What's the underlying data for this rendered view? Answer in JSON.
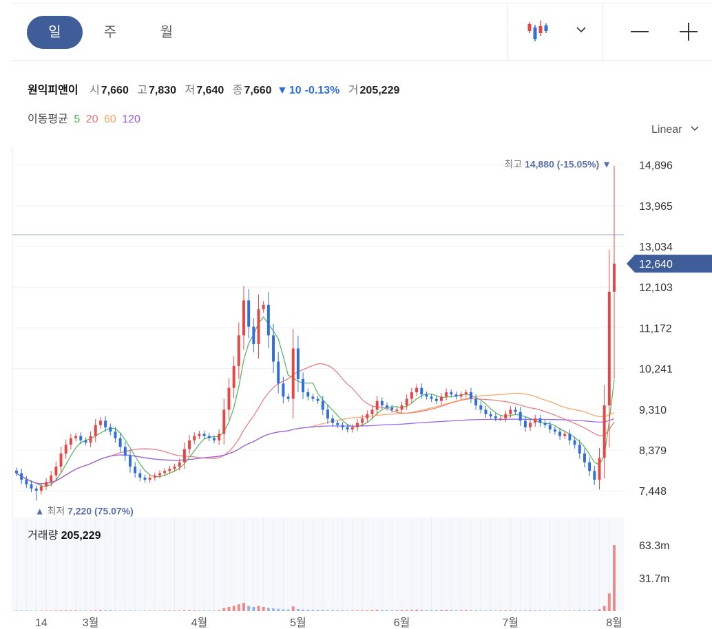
{
  "periods": [
    "일",
    "주",
    "월"
  ],
  "active_period": 0,
  "stock": {
    "name": "원익피앤이",
    "open_label": "시",
    "open": "7,660",
    "high_label": "고",
    "high": "7,830",
    "low_label": "저",
    "low": "7,640",
    "close_label": "종",
    "close": "7,660",
    "change_arrow": "▼",
    "change": "10",
    "change_pct": "-0.13%",
    "volume_label": "거",
    "volume": "205,229"
  },
  "ma": {
    "label": "이동평균",
    "periods": [
      "5",
      "20",
      "60",
      "120"
    ],
    "colors": [
      "#4caf50",
      "#e57373",
      "#f4a261",
      "#8e5be8"
    ]
  },
  "scale_mode": "Linear",
  "volume_panel": {
    "label": "거래량",
    "value": "205,229"
  },
  "icons": [
    "candlestick-icon",
    "chevron-down-icon",
    "minus-icon",
    "plus-icon"
  ],
  "colors": {
    "up": "#e84545",
    "down": "#2f6fdb",
    "accent": "#3f5d98"
  },
  "chart_data": {
    "type": "candlestick",
    "y_ticks": [
      "14,896",
      "13,965",
      "13,034",
      "12,103",
      "11,172",
      "10,241",
      "9,310",
      "8,379",
      "7,448"
    ],
    "y_tick_values": [
      14896,
      13965,
      13034,
      12103,
      11172,
      10241,
      9310,
      8379,
      7448
    ],
    "ylim": [
      6900,
      15300
    ],
    "x_tick_labels": [
      "14",
      "3월",
      "4월",
      "5월",
      "6월",
      "7월",
      "8월"
    ],
    "x_tick_index": [
      5,
      15,
      37,
      57,
      78,
      100,
      121
    ],
    "current_price_label": "12,640",
    "current_price": 12640,
    "reference_line": 13300,
    "max_marker": {
      "prefix": "최고",
      "value": "14,880",
      "pct": "(-15.05%)",
      "arrow": "▼",
      "price": 14880
    },
    "min_marker": {
      "prefix": "최저",
      "value": "7,220",
      "pct": "(75.07%)",
      "arrow": "▲",
      "price": 7220
    },
    "volume_ticks": [
      "63.3m",
      "31.7m"
    ],
    "volume_tick_values": [
      63.3,
      31.7
    ],
    "closes": [
      7850,
      7700,
      7600,
      7500,
      7450,
      7550,
      7650,
      7800,
      8000,
      8300,
      8500,
      8650,
      8700,
      8600,
      8550,
      8700,
      8950,
      9050,
      8900,
      8800,
      8650,
      8450,
      8250,
      8000,
      7850,
      7750,
      7700,
      7750,
      7800,
      7850,
      7900,
      7950,
      8000,
      8100,
      8400,
      8600,
      8700,
      8750,
      8700,
      8650,
      8600,
      8750,
      9300,
      9800,
      10300,
      11000,
      11800,
      11200,
      10800,
      11600,
      11700,
      11000,
      10400,
      9900,
      9600,
      9550,
      10700,
      10000,
      9700,
      9600,
      9550,
      9500,
      9300,
      9100,
      9000,
      8950,
      8900,
      8850,
      8900,
      9000,
      9100,
      9200,
      9300,
      9500,
      9400,
      9350,
      9300,
      9300,
      9400,
      9550,
      9700,
      9800,
      9650,
      9600,
      9550,
      9500,
      9600,
      9700,
      9650,
      9600,
      9650,
      9700,
      9550,
      9400,
      9300,
      9200,
      9150,
      9100,
      9100,
      9200,
      9300,
      9250,
      9050,
      8900,
      9000,
      9100,
      9000,
      8950,
      8850,
      8800,
      8700,
      8750,
      8600,
      8500,
      8300,
      8100,
      7900,
      7700,
      8200,
      9400,
      12000,
      12640
    ],
    "volumes": [
      0.5,
      0.5,
      0.4,
      0.4,
      0.4,
      0.4,
      0.4,
      0.5,
      0.6,
      0.7,
      0.7,
      0.7,
      0.7,
      0.6,
      0.6,
      0.6,
      0.7,
      0.9,
      0.7,
      0.7,
      0.5,
      0.5,
      0.5,
      0.5,
      0.4,
      0.4,
      0.4,
      0.4,
      0.4,
      0.4,
      0.5,
      0.5,
      0.5,
      0.6,
      0.8,
      0.8,
      0.6,
      0.6,
      0.5,
      0.5,
      0.5,
      0.8,
      3.0,
      4.0,
      5.0,
      6.5,
      8.0,
      5.0,
      4.0,
      5.0,
      4.0,
      3.0,
      2.5,
      2.2,
      1.6,
      1.5,
      4.5,
      2.0,
      1.5,
      1.2,
      1.1,
      1.0,
      1.0,
      0.9,
      0.8,
      0.7,
      0.7,
      0.6,
      0.6,
      0.6,
      0.7,
      0.8,
      0.9,
      1.2,
      1.0,
      0.9,
      0.8,
      0.8,
      0.9,
      1.0,
      1.2,
      1.3,
      1.0,
      0.9,
      0.9,
      0.9,
      1.0,
      1.1,
      1.0,
      0.9,
      0.9,
      1.0,
      0.8,
      0.7,
      0.6,
      0.6,
      0.6,
      0.6,
      0.6,
      0.7,
      0.7,
      0.7,
      0.6,
      0.6,
      0.6,
      0.6,
      0.6,
      0.6,
      0.5,
      0.5,
      0.5,
      0.5,
      0.5,
      0.5,
      0.6,
      0.6,
      0.7,
      0.8,
      1.8,
      5.0,
      17.0,
      63.3
    ]
  }
}
